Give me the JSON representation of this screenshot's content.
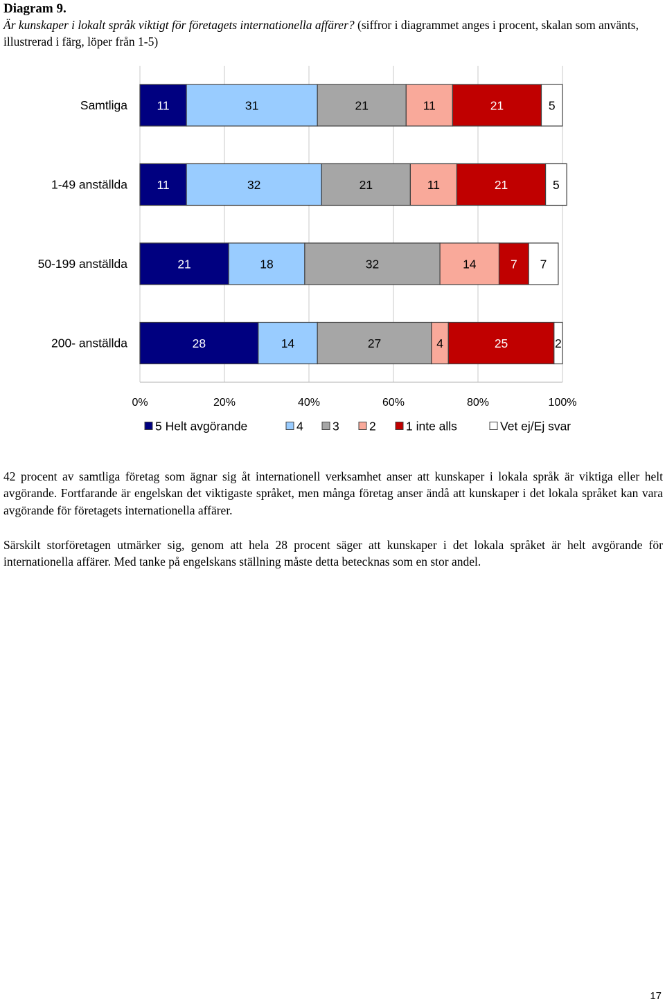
{
  "heading": {
    "label": "Diagram 9.",
    "caption_lead": "Är kunskaper i lokalt språk viktigt för företagets internationella affärer?",
    "caption_rest": " (siffror i diagrammet anges i procent, skalan som använts, illustrerad i färg, löper från 1-5)"
  },
  "chart_data": {
    "type": "bar",
    "orientation": "horizontal",
    "stacked": true,
    "categories": [
      "Samtliga",
      "1-49 anställda",
      "50-199 anställda",
      "200- anställda"
    ],
    "series": [
      {
        "name": "5 Helt avgörande",
        "color": "#000080",
        "values": [
          11,
          11,
          21,
          28
        ]
      },
      {
        "name": "4",
        "color": "#99ccff",
        "values": [
          31,
          32,
          18,
          14
        ]
      },
      {
        "name": "3",
        "color": "#a6a6a6",
        "values": [
          21,
          21,
          32,
          27
        ]
      },
      {
        "name": "2",
        "color": "#f9a99a",
        "values": [
          11,
          11,
          14,
          4
        ]
      },
      {
        "name": "1 inte alls",
        "color": "#c00000",
        "values": [
          21,
          21,
          7,
          25
        ]
      },
      {
        "name": "Vet ej/Ej svar",
        "color": "#ffffff",
        "values": [
          5,
          5,
          7,
          2
        ]
      }
    ],
    "xlim": [
      0,
      100
    ],
    "x_ticks": [
      "0%",
      "20%",
      "40%",
      "60%",
      "80%",
      "100%"
    ],
    "grid": "vertical",
    "legend_position": "bottom"
  },
  "body": {
    "paragraph_1": "42 procent av samtliga företag som ägnar sig åt internationell verksamhet anser att kunskaper i lokala språk är viktiga eller helt avgörande. Fortfarande är engelskan det viktigaste språket, men många företag anser ändå att kunskaper i det lokala språket kan vara avgörande för företagets internationella affärer.",
    "paragraph_2": "Särskilt storföretagen utmärker sig, genom att hela 28 procent säger att kunskaper i det lokala språket är helt avgörande för internationella affärer. Med tanke på engelskans ställning måste detta betecknas som en stor andel."
  },
  "page_number": "17"
}
